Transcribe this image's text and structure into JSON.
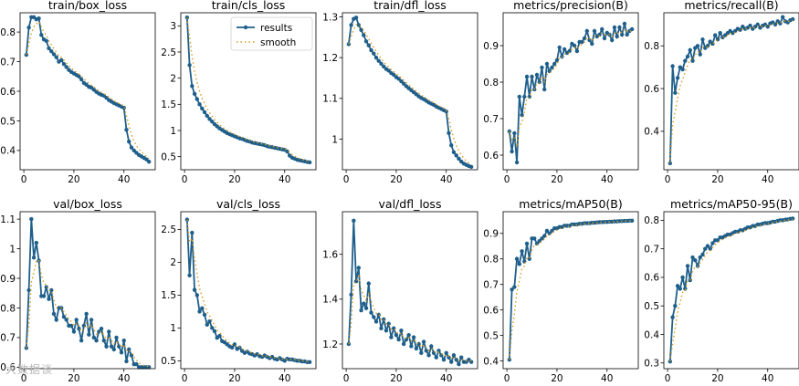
{
  "legend": {
    "results": "results",
    "smooth": "smooth"
  },
  "watermark": "大数据谈",
  "colors": {
    "results": "#1f5f8b",
    "smooth": "#d89a1f"
  },
  "chart_data": [
    {
      "type": "line",
      "title": "train/box_loss",
      "xlim": [
        -1.5,
        52.5
      ],
      "ylim": [
        0.335,
        0.865
      ],
      "xticks": [
        0,
        20,
        40
      ],
      "yticks": [
        0.4,
        0.5,
        0.6,
        0.7,
        0.8
      ],
      "series": [
        {
          "name": "results",
          "values": [
            0.723,
            0.815,
            0.85,
            0.85,
            0.843,
            0.846,
            0.79,
            0.775,
            0.77,
            0.745,
            0.735,
            0.725,
            0.715,
            0.7,
            0.705,
            0.692,
            0.682,
            0.672,
            0.665,
            0.66,
            0.655,
            0.65,
            0.64,
            0.628,
            0.622,
            0.615,
            0.612,
            0.605,
            0.598,
            0.592,
            0.588,
            0.585,
            0.578,
            0.57,
            0.565,
            0.56,
            0.556,
            0.552,
            0.548,
            0.544,
            0.47,
            0.43,
            0.41,
            0.4,
            0.392,
            0.385,
            0.38,
            0.375,
            0.37,
            0.362
          ]
        }
      ]
    },
    {
      "type": "line",
      "title": "train/cls_loss",
      "xlim": [
        -1.5,
        52.5
      ],
      "ylim": [
        0.25,
        3.25
      ],
      "xticks": [
        0,
        20,
        40
      ],
      "yticks": [
        0.5,
        1.0,
        1.5,
        2.0,
        2.5,
        3.0
      ],
      "legend": "top-right",
      "series": [
        {
          "name": "results",
          "values": [
            3.16,
            2.25,
            1.85,
            1.7,
            1.6,
            1.5,
            1.42,
            1.35,
            1.28,
            1.22,
            1.17,
            1.12,
            1.08,
            1.04,
            1.01,
            0.98,
            0.95,
            0.93,
            0.91,
            0.89,
            0.87,
            0.85,
            0.84,
            0.82,
            0.8,
            0.79,
            0.77,
            0.76,
            0.75,
            0.74,
            0.73,
            0.72,
            0.7,
            0.69,
            0.68,
            0.67,
            0.66,
            0.65,
            0.64,
            0.63,
            0.6,
            0.52,
            0.48,
            0.46,
            0.44,
            0.43,
            0.42,
            0.41,
            0.4,
            0.39
          ]
        }
      ]
    },
    {
      "type": "line",
      "title": "train/dfl_loss",
      "xlim": [
        -1.5,
        52.5
      ],
      "ylim": [
        0.925,
        1.31
      ],
      "xticks": [
        0,
        20,
        40
      ],
      "yticks": [
        1.0,
        1.1,
        1.2,
        1.3
      ],
      "series": [
        {
          "name": "results",
          "values": [
            1.233,
            1.28,
            1.295,
            1.298,
            1.28,
            1.268,
            1.255,
            1.24,
            1.23,
            1.218,
            1.21,
            1.2,
            1.192,
            1.185,
            1.178,
            1.172,
            1.168,
            1.162,
            1.158,
            1.152,
            1.148,
            1.142,
            1.136,
            1.13,
            1.125,
            1.12,
            1.115,
            1.11,
            1.105,
            1.101,
            1.098,
            1.094,
            1.09,
            1.087,
            1.084,
            1.08,
            1.077,
            1.074,
            1.071,
            1.068,
            1.015,
            0.985,
            0.968,
            0.96,
            0.952,
            0.945,
            0.94,
            0.937,
            0.934,
            0.932
          ]
        }
      ]
    },
    {
      "type": "line",
      "title": "metrics/precision(B)",
      "xlim": [
        -1.5,
        52.5
      ],
      "ylim": [
        0.56,
        0.99
      ],
      "xticks": [
        0,
        20,
        40
      ],
      "yticks": [
        0.6,
        0.7,
        0.8,
        0.9
      ],
      "series": [
        {
          "name": "results",
          "values": [
            0.665,
            0.61,
            0.66,
            0.58,
            0.76,
            0.71,
            0.76,
            0.815,
            0.76,
            0.815,
            0.78,
            0.82,
            0.8,
            0.84,
            0.78,
            0.85,
            0.83,
            0.84,
            0.85,
            0.86,
            0.895,
            0.87,
            0.89,
            0.88,
            0.885,
            0.905,
            0.9,
            0.885,
            0.91,
            0.91,
            0.92,
            0.94,
            0.915,
            0.905,
            0.94,
            0.925,
            0.93,
            0.945,
            0.92,
            0.935,
            0.93,
            0.915,
            0.95,
            0.925,
            0.95,
            0.93,
            0.96,
            0.93,
            0.94,
            0.945
          ]
        }
      ]
    },
    {
      "type": "line",
      "title": "metrics/recall(B)",
      "xlim": [
        -1.5,
        52.5
      ],
      "ylim": [
        0.22,
        0.955
      ],
      "xticks": [
        0,
        20,
        40
      ],
      "yticks": [
        0.4,
        0.6,
        0.8
      ],
      "series": [
        {
          "name": "results",
          "values": [
            0.25,
            0.705,
            0.58,
            0.65,
            0.7,
            0.69,
            0.73,
            0.75,
            0.78,
            0.73,
            0.79,
            0.8,
            0.76,
            0.83,
            0.79,
            0.8,
            0.82,
            0.81,
            0.85,
            0.83,
            0.86,
            0.84,
            0.85,
            0.86,
            0.87,
            0.86,
            0.87,
            0.88,
            0.875,
            0.89,
            0.88,
            0.885,
            0.895,
            0.88,
            0.89,
            0.9,
            0.885,
            0.895,
            0.9,
            0.89,
            0.905,
            0.91,
            0.9,
            0.915,
            0.905,
            0.935,
            0.915,
            0.91,
            0.92,
            0.925
          ]
        }
      ]
    },
    {
      "type": "line",
      "title": "val/box_loss",
      "xlim": [
        -1.5,
        52.5
      ],
      "ylim": [
        0.595,
        1.125
      ],
      "xticks": [
        0,
        20,
        40
      ],
      "yticks": [
        0.6,
        0.7,
        0.8,
        0.9,
        1.0,
        1.1
      ],
      "series": [
        {
          "name": "results",
          "values": [
            0.665,
            0.86,
            1.1,
            0.97,
            1.02,
            0.96,
            0.84,
            0.84,
            0.87,
            0.83,
            0.86,
            0.78,
            0.76,
            0.8,
            0.8,
            0.77,
            0.76,
            0.74,
            0.74,
            0.72,
            0.76,
            0.73,
            0.69,
            0.74,
            0.78,
            0.71,
            0.76,
            0.7,
            0.69,
            0.72,
            0.73,
            0.69,
            0.67,
            0.72,
            0.67,
            0.66,
            0.7,
            0.67,
            0.65,
            0.69,
            0.62,
            0.66,
            0.64,
            0.61,
            0.61,
            0.6,
            0.6,
            0.6,
            0.6,
            0.6
          ]
        }
      ]
    },
    {
      "type": "line",
      "title": "val/cls_loss",
      "xlim": [
        -1.5,
        52.5
      ],
      "ylim": [
        0.38,
        2.77
      ],
      "xticks": [
        0,
        20,
        40
      ],
      "yticks": [
        0.5,
        1.0,
        1.5,
        2.0,
        2.5
      ],
      "series": [
        {
          "name": "results",
          "values": [
            2.65,
            1.8,
            2.45,
            1.58,
            1.5,
            1.25,
            1.3,
            1.2,
            1.05,
            1.1,
            1.0,
            0.95,
            0.85,
            0.88,
            0.8,
            0.78,
            0.75,
            0.72,
            0.7,
            0.75,
            0.68,
            0.7,
            0.65,
            0.62,
            0.64,
            0.61,
            0.6,
            0.58,
            0.6,
            0.57,
            0.56,
            0.58,
            0.56,
            0.54,
            0.56,
            0.53,
            0.52,
            0.54,
            0.52,
            0.5,
            0.53,
            0.52,
            0.52,
            0.51,
            0.5,
            0.5,
            0.49,
            0.49,
            0.48,
            0.48
          ]
        }
      ]
    },
    {
      "type": "line",
      "title": "val/dfl_loss",
      "xlim": [
        -1.5,
        52.5
      ],
      "ylim": [
        1.09,
        1.79
      ],
      "xticks": [
        0,
        20,
        40
      ],
      "yticks": [
        1.2,
        1.4,
        1.6
      ],
      "series": [
        {
          "name": "results",
          "values": [
            1.2,
            1.42,
            1.75,
            1.48,
            1.54,
            1.35,
            1.38,
            1.36,
            1.47,
            1.34,
            1.32,
            1.3,
            1.33,
            1.27,
            1.31,
            1.26,
            1.29,
            1.23,
            1.27,
            1.24,
            1.22,
            1.26,
            1.2,
            1.22,
            1.24,
            1.19,
            1.23,
            1.18,
            1.2,
            1.16,
            1.21,
            1.17,
            1.15,
            1.19,
            1.16,
            1.14,
            1.17,
            1.15,
            1.13,
            1.16,
            1.14,
            1.12,
            1.15,
            1.13,
            1.11,
            1.14,
            1.12,
            1.12,
            1.13,
            1.12
          ]
        }
      ]
    },
    {
      "type": "line",
      "title": "metrics/mAP50(B)",
      "xlim": [
        -1.5,
        52.5
      ],
      "ylim": [
        0.37,
        0.985
      ],
      "xticks": [
        0,
        20,
        40
      ],
      "yticks": [
        0.4,
        0.5,
        0.6,
        0.7,
        0.8,
        0.9
      ],
      "series": [
        {
          "name": "results",
          "values": [
            0.405,
            0.68,
            0.69,
            0.8,
            0.78,
            0.83,
            0.79,
            0.86,
            0.8,
            0.88,
            0.88,
            0.86,
            0.87,
            0.88,
            0.89,
            0.91,
            0.9,
            0.91,
            0.92,
            0.92,
            0.925,
            0.925,
            0.93,
            0.93,
            0.93,
            0.935,
            0.935,
            0.935,
            0.938,
            0.938,
            0.94,
            0.94,
            0.94,
            0.942,
            0.942,
            0.943,
            0.944,
            0.944,
            0.945,
            0.945,
            0.946,
            0.946,
            0.947,
            0.947,
            0.948,
            0.948,
            0.949,
            0.949,
            0.95,
            0.95
          ]
        }
      ]
    },
    {
      "type": "line",
      "title": "metrics/mAP50-95(B)",
      "xlim": [
        -1.5,
        52.5
      ],
      "ylim": [
        0.28,
        0.83
      ],
      "xticks": [
        0,
        20,
        40
      ],
      "yticks": [
        0.3,
        0.4,
        0.5,
        0.6,
        0.7,
        0.8
      ],
      "series": [
        {
          "name": "results",
          "values": [
            0.305,
            0.46,
            0.5,
            0.57,
            0.56,
            0.6,
            0.56,
            0.64,
            0.59,
            0.67,
            0.66,
            0.64,
            0.67,
            0.68,
            0.7,
            0.71,
            0.7,
            0.72,
            0.73,
            0.73,
            0.74,
            0.74,
            0.745,
            0.75,
            0.75,
            0.755,
            0.76,
            0.76,
            0.765,
            0.765,
            0.77,
            0.775,
            0.775,
            0.78,
            0.78,
            0.785,
            0.785,
            0.788,
            0.79,
            0.79,
            0.792,
            0.795,
            0.795,
            0.798,
            0.8,
            0.8,
            0.802,
            0.803,
            0.805,
            0.806
          ]
        }
      ]
    }
  ]
}
